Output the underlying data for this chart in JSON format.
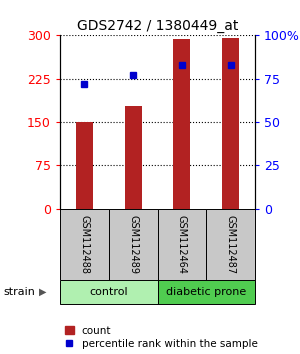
{
  "title": "GDS2742 / 1380449_at",
  "samples": [
    "GSM112488",
    "GSM112489",
    "GSM112464",
    "GSM112487"
  ],
  "counts": [
    150,
    178,
    293,
    296
  ],
  "percentiles": [
    72,
    77,
    83,
    83
  ],
  "bar_color": "#b22222",
  "marker_color": "#0000cd",
  "left_yticks": [
    0,
    75,
    150,
    225,
    300
  ],
  "right_yticks": [
    0,
    25,
    50,
    75,
    100
  ],
  "left_yticklabels": [
    "0",
    "75",
    "150",
    "225",
    "300"
  ],
  "right_yticklabels": [
    "0",
    "25",
    "50",
    "75",
    "100%"
  ],
  "ylim_left": [
    0,
    300
  ],
  "ylim_right": [
    0,
    100
  ],
  "groups": [
    {
      "label": "control",
      "color": "#b0f0b0",
      "indices": [
        0,
        1
      ]
    },
    {
      "label": "diabetic prone",
      "color": "#50cc50",
      "indices": [
        2,
        3
      ]
    }
  ],
  "strain_label": "strain",
  "legend_count_label": "count",
  "legend_pct_label": "percentile rank within the sample",
  "sample_box_color": "#c8c8c8",
  "figsize": [
    3.0,
    3.54
  ],
  "dpi": 100
}
